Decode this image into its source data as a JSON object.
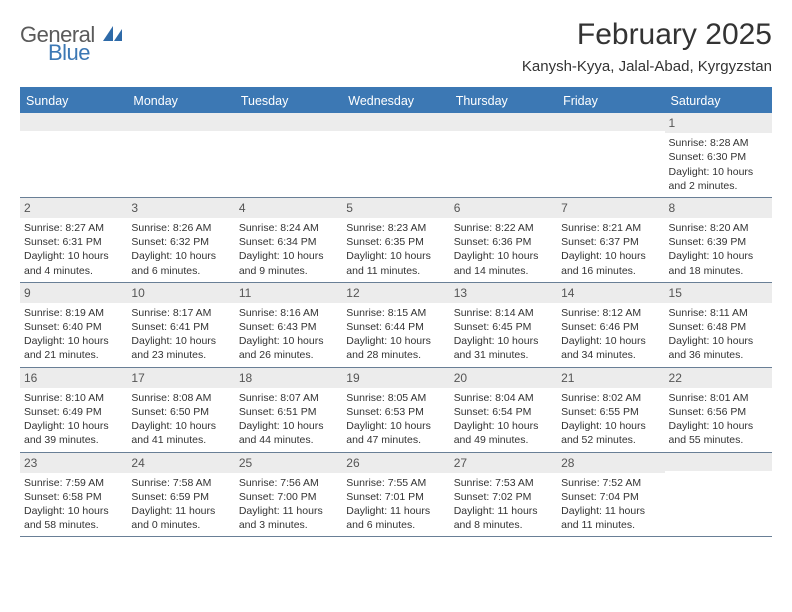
{
  "logo": {
    "text1": "General",
    "text2": "Blue"
  },
  "header": {
    "title": "February 2025",
    "location": "Kanysh-Kyya, Jalal-Abad, Kyrgyzstan"
  },
  "daysOfWeek": [
    "Sunday",
    "Monday",
    "Tuesday",
    "Wednesday",
    "Thursday",
    "Friday",
    "Saturday"
  ],
  "colors": {
    "headerBar": "#3c78b4",
    "rowDivider": "#697f96",
    "dayNumBg": "#ececec",
    "text": "#333333"
  },
  "weeks": [
    [
      {
        "n": "",
        "sunrise": "",
        "sunset": "",
        "daylight": ""
      },
      {
        "n": "",
        "sunrise": "",
        "sunset": "",
        "daylight": ""
      },
      {
        "n": "",
        "sunrise": "",
        "sunset": "",
        "daylight": ""
      },
      {
        "n": "",
        "sunrise": "",
        "sunset": "",
        "daylight": ""
      },
      {
        "n": "",
        "sunrise": "",
        "sunset": "",
        "daylight": ""
      },
      {
        "n": "",
        "sunrise": "",
        "sunset": "",
        "daylight": ""
      },
      {
        "n": "1",
        "sunrise": "Sunrise: 8:28 AM",
        "sunset": "Sunset: 6:30 PM",
        "daylight": "Daylight: 10 hours and 2 minutes."
      }
    ],
    [
      {
        "n": "2",
        "sunrise": "Sunrise: 8:27 AM",
        "sunset": "Sunset: 6:31 PM",
        "daylight": "Daylight: 10 hours and 4 minutes."
      },
      {
        "n": "3",
        "sunrise": "Sunrise: 8:26 AM",
        "sunset": "Sunset: 6:32 PM",
        "daylight": "Daylight: 10 hours and 6 minutes."
      },
      {
        "n": "4",
        "sunrise": "Sunrise: 8:24 AM",
        "sunset": "Sunset: 6:34 PM",
        "daylight": "Daylight: 10 hours and 9 minutes."
      },
      {
        "n": "5",
        "sunrise": "Sunrise: 8:23 AM",
        "sunset": "Sunset: 6:35 PM",
        "daylight": "Daylight: 10 hours and 11 minutes."
      },
      {
        "n": "6",
        "sunrise": "Sunrise: 8:22 AM",
        "sunset": "Sunset: 6:36 PM",
        "daylight": "Daylight: 10 hours and 14 minutes."
      },
      {
        "n": "7",
        "sunrise": "Sunrise: 8:21 AM",
        "sunset": "Sunset: 6:37 PM",
        "daylight": "Daylight: 10 hours and 16 minutes."
      },
      {
        "n": "8",
        "sunrise": "Sunrise: 8:20 AM",
        "sunset": "Sunset: 6:39 PM",
        "daylight": "Daylight: 10 hours and 18 minutes."
      }
    ],
    [
      {
        "n": "9",
        "sunrise": "Sunrise: 8:19 AM",
        "sunset": "Sunset: 6:40 PM",
        "daylight": "Daylight: 10 hours and 21 minutes."
      },
      {
        "n": "10",
        "sunrise": "Sunrise: 8:17 AM",
        "sunset": "Sunset: 6:41 PM",
        "daylight": "Daylight: 10 hours and 23 minutes."
      },
      {
        "n": "11",
        "sunrise": "Sunrise: 8:16 AM",
        "sunset": "Sunset: 6:43 PM",
        "daylight": "Daylight: 10 hours and 26 minutes."
      },
      {
        "n": "12",
        "sunrise": "Sunrise: 8:15 AM",
        "sunset": "Sunset: 6:44 PM",
        "daylight": "Daylight: 10 hours and 28 minutes."
      },
      {
        "n": "13",
        "sunrise": "Sunrise: 8:14 AM",
        "sunset": "Sunset: 6:45 PM",
        "daylight": "Daylight: 10 hours and 31 minutes."
      },
      {
        "n": "14",
        "sunrise": "Sunrise: 8:12 AM",
        "sunset": "Sunset: 6:46 PM",
        "daylight": "Daylight: 10 hours and 34 minutes."
      },
      {
        "n": "15",
        "sunrise": "Sunrise: 8:11 AM",
        "sunset": "Sunset: 6:48 PM",
        "daylight": "Daylight: 10 hours and 36 minutes."
      }
    ],
    [
      {
        "n": "16",
        "sunrise": "Sunrise: 8:10 AM",
        "sunset": "Sunset: 6:49 PM",
        "daylight": "Daylight: 10 hours and 39 minutes."
      },
      {
        "n": "17",
        "sunrise": "Sunrise: 8:08 AM",
        "sunset": "Sunset: 6:50 PM",
        "daylight": "Daylight: 10 hours and 41 minutes."
      },
      {
        "n": "18",
        "sunrise": "Sunrise: 8:07 AM",
        "sunset": "Sunset: 6:51 PM",
        "daylight": "Daylight: 10 hours and 44 minutes."
      },
      {
        "n": "19",
        "sunrise": "Sunrise: 8:05 AM",
        "sunset": "Sunset: 6:53 PM",
        "daylight": "Daylight: 10 hours and 47 minutes."
      },
      {
        "n": "20",
        "sunrise": "Sunrise: 8:04 AM",
        "sunset": "Sunset: 6:54 PM",
        "daylight": "Daylight: 10 hours and 49 minutes."
      },
      {
        "n": "21",
        "sunrise": "Sunrise: 8:02 AM",
        "sunset": "Sunset: 6:55 PM",
        "daylight": "Daylight: 10 hours and 52 minutes."
      },
      {
        "n": "22",
        "sunrise": "Sunrise: 8:01 AM",
        "sunset": "Sunset: 6:56 PM",
        "daylight": "Daylight: 10 hours and 55 minutes."
      }
    ],
    [
      {
        "n": "23",
        "sunrise": "Sunrise: 7:59 AM",
        "sunset": "Sunset: 6:58 PM",
        "daylight": "Daylight: 10 hours and 58 minutes."
      },
      {
        "n": "24",
        "sunrise": "Sunrise: 7:58 AM",
        "sunset": "Sunset: 6:59 PM",
        "daylight": "Daylight: 11 hours and 0 minutes."
      },
      {
        "n": "25",
        "sunrise": "Sunrise: 7:56 AM",
        "sunset": "Sunset: 7:00 PM",
        "daylight": "Daylight: 11 hours and 3 minutes."
      },
      {
        "n": "26",
        "sunrise": "Sunrise: 7:55 AM",
        "sunset": "Sunset: 7:01 PM",
        "daylight": "Daylight: 11 hours and 6 minutes."
      },
      {
        "n": "27",
        "sunrise": "Sunrise: 7:53 AM",
        "sunset": "Sunset: 7:02 PM",
        "daylight": "Daylight: 11 hours and 8 minutes."
      },
      {
        "n": "28",
        "sunrise": "Sunrise: 7:52 AM",
        "sunset": "Sunset: 7:04 PM",
        "daylight": "Daylight: 11 hours and 11 minutes."
      },
      {
        "n": "",
        "sunrise": "",
        "sunset": "",
        "daylight": ""
      }
    ]
  ]
}
